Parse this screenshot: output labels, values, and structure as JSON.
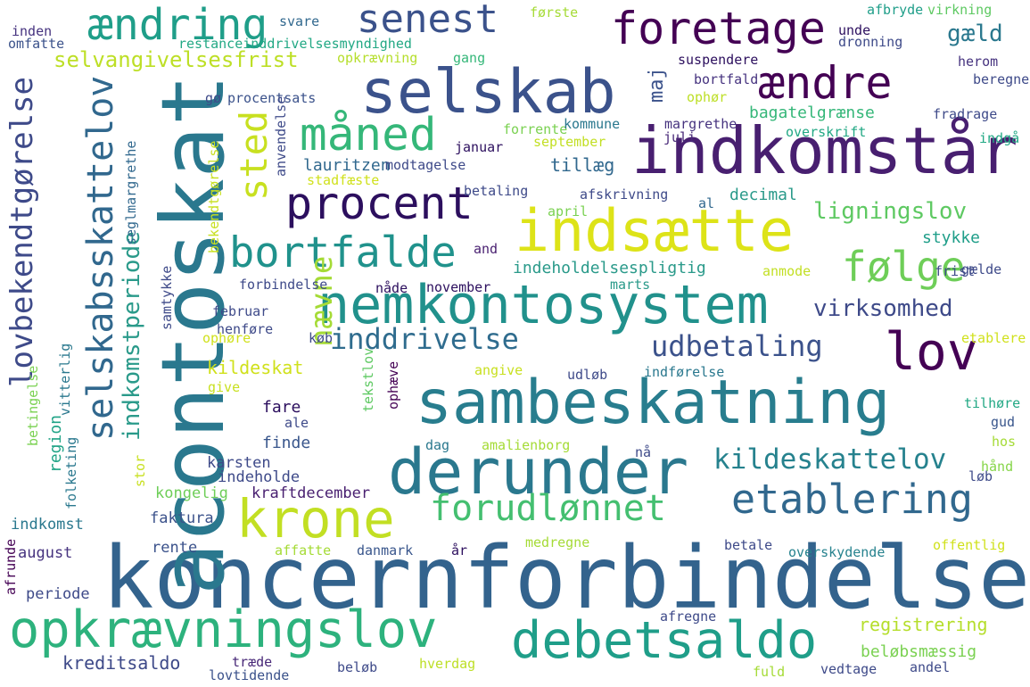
{
  "wordcloud": {
    "words": [
      {
        "text": "koncernforbindelse",
        "color": "#33638d"
      },
      {
        "text": "acontoskat",
        "color": "#2a788e"
      },
      {
        "text": "indkomstår",
        "color": "#481f70"
      },
      {
        "text": "sambeskatning",
        "color": "#287d8e"
      },
      {
        "text": "selskab",
        "color": "#3b528b"
      },
      {
        "text": "indsætte",
        "color": "#dde318"
      },
      {
        "text": "derunder",
        "color": "#2a788e"
      },
      {
        "text": "nemkontosystem",
        "color": "#21918c"
      },
      {
        "text": "opkrævningslov",
        "color": "#2db27d"
      },
      {
        "text": "debetsaldo",
        "color": "#1f9e89"
      },
      {
        "text": "lovbekendtgørelse",
        "color": "#3e4a89"
      },
      {
        "text": "selskabsskattelov",
        "color": "#31688e"
      },
      {
        "text": "krone",
        "color": "#c2df23"
      },
      {
        "text": "foretage",
        "color": "#440154"
      },
      {
        "text": "lov",
        "color": "#440154"
      },
      {
        "text": "ændre",
        "color": "#440154"
      },
      {
        "text": "ændring",
        "color": "#1f9e89"
      },
      {
        "text": "senest",
        "color": "#3b528b"
      },
      {
        "text": "procent",
        "color": "#2c0f5e"
      },
      {
        "text": "bortfalde",
        "color": "#20928c"
      },
      {
        "text": "måned",
        "color": "#35b779"
      },
      {
        "text": "følge",
        "color": "#6ece58"
      },
      {
        "text": "forudlønnet",
        "color": "#44bf70"
      },
      {
        "text": "etablering",
        "color": "#31688e"
      },
      {
        "text": "sted",
        "color": "#c8e020"
      },
      {
        "text": "nævne",
        "color": "#a5db36"
      },
      {
        "text": "indkomstperiode",
        "color": "#2a9a8a"
      },
      {
        "text": "kildeskattelov",
        "color": "#26828e"
      },
      {
        "text": "inddrivelse",
        "color": "#2f6c8e"
      },
      {
        "text": "udbetaling",
        "color": "#3b528b"
      },
      {
        "text": "virksomhed",
        "color": "#3e4a89"
      },
      {
        "text": "ligningslov",
        "color": "#5ec962"
      },
      {
        "text": "maj",
        "color": "#3b528b"
      },
      {
        "text": "gæld",
        "color": "#2a788e"
      },
      {
        "text": "selvangivelsesfrist",
        "color": "#bddf26"
      },
      {
        "text": "kreditsaldo",
        "color": "#3e4a89"
      },
      {
        "text": "registrering",
        "color": "#b5de2b"
      },
      {
        "text": "beløbsmæssig",
        "color": "#7ad151"
      },
      {
        "text": "kildeskat",
        "color": "#d0e11c"
      },
      {
        "text": "tillæg",
        "color": "#31688e"
      },
      {
        "text": "lauritzen",
        "color": "#31688e"
      },
      {
        "text": "bagatelgrænse",
        "color": "#35b779"
      },
      {
        "text": "decimal",
        "color": "#2a9a8a"
      },
      {
        "text": "stykke",
        "color": "#1f9e89"
      },
      {
        "text": "indeholdelsespligtig",
        "color": "#2a9a8a"
      },
      {
        "text": "region",
        "color": "#20a386"
      },
      {
        "text": "fare",
        "color": "#2c0f5e"
      },
      {
        "text": "finde",
        "color": "#39568c"
      },
      {
        "text": "karsten",
        "color": "#3e4a89"
      },
      {
        "text": "indeholde",
        "color": "#3e4a89"
      },
      {
        "text": "kongelig",
        "color": "#6ece58"
      },
      {
        "text": "kraftdecember",
        "color": "#481f70"
      },
      {
        "text": "faktura",
        "color": "#3b528b"
      },
      {
        "text": "indkomst",
        "color": "#2a788e"
      },
      {
        "text": "august",
        "color": "#46337f"
      },
      {
        "text": "rente",
        "color": "#3b528b"
      },
      {
        "text": "periode",
        "color": "#3e4a89"
      },
      {
        "text": "afrunde",
        "color": "#440154"
      },
      {
        "text": "affatte",
        "color": "#a5db36"
      },
      {
        "text": "danmark",
        "color": "#39568c"
      },
      {
        "text": "år",
        "color": "#2c0f5e"
      },
      {
        "text": "medregne",
        "color": "#a5db36"
      },
      {
        "text": "betale",
        "color": "#3e4a89"
      },
      {
        "text": "overskydende",
        "color": "#26828e"
      },
      {
        "text": "offentlig",
        "color": "#d0e11c"
      },
      {
        "text": "afregne",
        "color": "#3e4a89"
      },
      {
        "text": "træde",
        "color": "#482878"
      },
      {
        "text": "lovtidende",
        "color": "#3b528b"
      },
      {
        "text": "beløb",
        "color": "#3e4a89"
      },
      {
        "text": "hverdag",
        "color": "#bddf26"
      },
      {
        "text": "fuld",
        "color": "#a5db36"
      },
      {
        "text": "vedtage",
        "color": "#3e4a89"
      },
      {
        "text": "andel",
        "color": "#3e4a89"
      },
      {
        "text": "hånd",
        "color": "#86d549"
      },
      {
        "text": "hos",
        "color": "#a5db36"
      },
      {
        "text": "løb",
        "color": "#3e4a89"
      },
      {
        "text": "gud",
        "color": "#39568c"
      },
      {
        "text": "tilhøre",
        "color": "#22a884"
      },
      {
        "text": "inden",
        "color": "#46337f"
      },
      {
        "text": "omfatte",
        "color": "#3b528b"
      },
      {
        "text": "svare",
        "color": "#31688e"
      },
      {
        "text": "første",
        "color": "#a5db36"
      },
      {
        "text": "afbryde",
        "color": "#1f9e89"
      },
      {
        "text": "virkning",
        "color": "#5ec962"
      },
      {
        "text": "unde",
        "color": "#2c0f5e"
      },
      {
        "text": "dronning",
        "color": "#3e4a89"
      },
      {
        "text": "restanceinddrivelsesmyndighed",
        "color": "#22a884"
      },
      {
        "text": "opkrævning",
        "color": "#b5de2b"
      },
      {
        "text": "gang",
        "color": "#35b779"
      },
      {
        "text": "suspendere",
        "color": "#2c0f5e"
      },
      {
        "text": "herom",
        "color": "#46337f"
      },
      {
        "text": "beregne",
        "color": "#3e4a89"
      },
      {
        "text": "bortfald",
        "color": "#46337f"
      },
      {
        "text": "ophør",
        "color": "#bddf26"
      },
      {
        "text": "gø",
        "color": "#3e4a89"
      },
      {
        "text": "procentsats",
        "color": "#3b528b"
      },
      {
        "text": "forrente",
        "color": "#7ad151"
      },
      {
        "text": "kommune",
        "color": "#2a788e"
      },
      {
        "text": "margrethe",
        "color": "#46337f"
      },
      {
        "text": "fradrage",
        "color": "#3e4a89"
      },
      {
        "text": "overskrift",
        "color": "#22a884"
      },
      {
        "text": "indgå",
        "color": "#22a884"
      },
      {
        "text": "juli",
        "color": "#482878"
      },
      {
        "text": "september",
        "color": "#c2df23"
      },
      {
        "text": "januar",
        "color": "#2c0f5e"
      },
      {
        "text": "modtagelse",
        "color": "#3e4a89"
      },
      {
        "text": "stadfæste",
        "color": "#d0e11c"
      },
      {
        "text": "betaling",
        "color": "#3e4a89"
      },
      {
        "text": "afskrivning",
        "color": "#3e4a89"
      },
      {
        "text": "al",
        "color": "#31688e"
      },
      {
        "text": "april",
        "color": "#7ad151"
      },
      {
        "text": "and",
        "color": "#481f70"
      },
      {
        "text": "gælde",
        "color": "#3e4a89"
      },
      {
        "text": "frist",
        "color": "#3e4a89"
      },
      {
        "text": "anmode",
        "color": "#c2df23"
      },
      {
        "text": "marts",
        "color": "#2a9a8a"
      },
      {
        "text": "nåde",
        "color": "#2c0f5e"
      },
      {
        "text": "november",
        "color": "#2c0f5e"
      },
      {
        "text": "forbindelse",
        "color": "#3e4a89"
      },
      {
        "text": "februar",
        "color": "#3e4a89"
      },
      {
        "text": "henføre",
        "color": "#3e4a89"
      },
      {
        "text": "ophøre",
        "color": "#d0e11c"
      },
      {
        "text": "køb",
        "color": "#3e4a89"
      },
      {
        "text": "etablere",
        "color": "#d0e11c"
      },
      {
        "text": "give",
        "color": "#c8e020"
      },
      {
        "text": "angive",
        "color": "#c8e020"
      },
      {
        "text": "udløb",
        "color": "#3e4a89"
      },
      {
        "text": "indførelse",
        "color": "#2a788e"
      },
      {
        "text": "ale",
        "color": "#3e4a89"
      },
      {
        "text": "dag",
        "color": "#2a788e"
      },
      {
        "text": "amalienborg",
        "color": "#a5db36"
      },
      {
        "text": "nå",
        "color": "#3e4a89"
      },
      {
        "text": "stor",
        "color": "#c8e020"
      },
      {
        "text": "vitterlig",
        "color": "#2a788e"
      },
      {
        "text": "folketing",
        "color": "#2a788e"
      },
      {
        "text": "betingelse",
        "color": "#7ad151"
      },
      {
        "text": "seglmargrethe",
        "color": "#31688e"
      },
      {
        "text": "samtykke",
        "color": "#3e4a89"
      },
      {
        "text": "anvendelse",
        "color": "#3e4a89"
      },
      {
        "text": "bekendtgørelse",
        "color": "#c8e020"
      },
      {
        "text": "tekstlov",
        "color": "#5ec962"
      },
      {
        "text": "ophæve",
        "color": "#440154"
      }
    ]
  }
}
